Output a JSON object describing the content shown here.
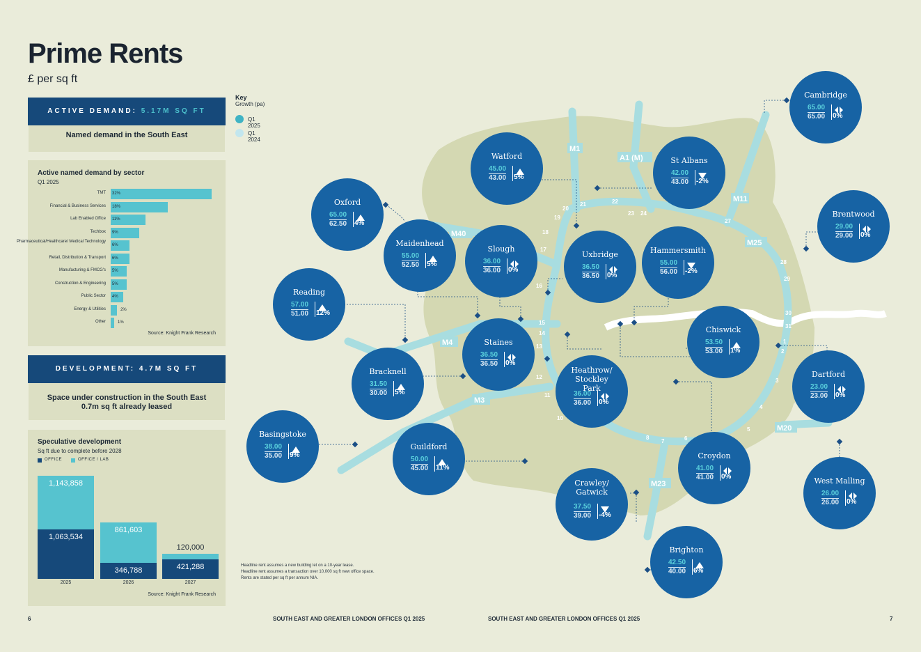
{
  "header": {
    "title": "Prime Rents",
    "subtitle": "£ per sq ft"
  },
  "active_demand": {
    "banner_label": "ACTIVE DEMAND:",
    "banner_value": "5.17M SQ FT",
    "caption": "Named demand in the South East"
  },
  "sector_chart": {
    "title": "Active named demand by sector",
    "period": "Q1 2025",
    "source": "Source: Knight Frank Research",
    "chart_data": {
      "type": "bar",
      "orientation": "horizontal",
      "title": "Active named demand by sector",
      "unit": "%",
      "categories": [
        "TMT",
        "Financial & Business Services",
        "Lab Enabled Office",
        "Techbox",
        "Pharmaceutical/Healthcare/ Medical Technology",
        "Retail, Distribution & Transport",
        "Manufacturing & FMCG's",
        "Construction & Engineering",
        "Public Sector",
        "Energy & Utilities",
        "Other"
      ],
      "values": [
        32,
        18,
        11,
        9,
        6,
        6,
        5,
        5,
        4,
        2,
        1
      ],
      "labels": [
        "32%",
        "18%",
        "11%",
        "9%",
        "6%",
        "6%",
        "5%",
        "5%",
        "4%",
        "2%",
        "1%"
      ]
    }
  },
  "development": {
    "banner_label": "DEVELOPMENT: 4.7M SQ FT",
    "caption_line1": "Space under construction in the South East",
    "caption_line2": "0.7m sq ft already leased"
  },
  "spec_chart": {
    "title": "Speculative development",
    "subtitle": "Sq ft due to complete before 2028",
    "legend_office": "OFFICE",
    "legend_lab": "OFFICE / LAB",
    "source": "Source: Knight Frank Research",
    "colors": {
      "office": "#16497a",
      "lab": "#56c3cf"
    },
    "chart_data": {
      "type": "bar",
      "stacked": true,
      "categories": [
        "2025",
        "2026",
        "2027"
      ],
      "series": [
        {
          "name": "OFFICE",
          "values": [
            1063534,
            346788,
            421288
          ],
          "labels": [
            "1,063,534",
            "346,788",
            "421,288"
          ]
        },
        {
          "name": "OFFICE / LAB",
          "values": [
            1143858,
            861603,
            120000
          ],
          "labels": [
            "1,143,858",
            "861,603",
            "120,000"
          ]
        }
      ]
    }
  },
  "key": {
    "title": "Key",
    "subtitle": "Growth (pa)",
    "q1_2025": "Q1 2025",
    "q1_2024": "Q1 2024"
  },
  "roads": [
    "M1",
    "A1 (M)",
    "M11",
    "M25",
    "M40",
    "M4",
    "M3",
    "M23",
    "M20"
  ],
  "junctions": [
    "2",
    "3",
    "4",
    "5",
    "6",
    "7",
    "8",
    "10",
    "11",
    "12",
    "13",
    "14",
    "15",
    "16",
    "17",
    "18",
    "19",
    "20",
    "21",
    "22",
    "23",
    "24",
    "27",
    "28",
    "29",
    "30",
    "31",
    "1"
  ],
  "locations": [
    {
      "name": "Cambridge",
      "q1_2025": "65.00",
      "q1_2024": "65.00",
      "trend": "flat",
      "growth": "0%"
    },
    {
      "name": "Oxford",
      "q1_2025": "65.00",
      "q1_2024": "62.50",
      "trend": "up",
      "growth": "4%"
    },
    {
      "name": "Watford",
      "q1_2025": "45.00",
      "q1_2024": "43.00",
      "trend": "up",
      "growth": "5%"
    },
    {
      "name": "St Albans",
      "q1_2025": "42.00",
      "q1_2024": "43.00",
      "trend": "down",
      "growth": "-2%"
    },
    {
      "name": "Brentwood",
      "q1_2025": "29.00",
      "q1_2024": "29.00",
      "trend": "flat",
      "growth": "0%"
    },
    {
      "name": "Maidenhead",
      "q1_2025": "55.00",
      "q1_2024": "52.50",
      "trend": "up",
      "growth": "5%"
    },
    {
      "name": "Slough",
      "q1_2025": "36.00",
      "q1_2024": "36.00",
      "trend": "flat",
      "growth": "0%"
    },
    {
      "name": "Uxbridge",
      "q1_2025": "36.50",
      "q1_2024": "36.50",
      "trend": "flat",
      "growth": "0%"
    },
    {
      "name": "Hammersmith",
      "q1_2025": "55.00",
      "q1_2024": "56.00",
      "trend": "down",
      "growth": "-2%"
    },
    {
      "name": "Reading",
      "q1_2025": "57.00",
      "q1_2024": "51.00",
      "trend": "up",
      "growth": "12%"
    },
    {
      "name": "Chiswick",
      "q1_2025": "53.50",
      "q1_2024": "53.00",
      "trend": "up",
      "growth": "1%"
    },
    {
      "name": "Staines",
      "q1_2025": "36.50",
      "q1_2024": "36.50",
      "trend": "flat",
      "growth": "0%"
    },
    {
      "name": "Bracknell",
      "q1_2025": "31.50",
      "q1_2024": "30.00",
      "trend": "up",
      "growth": "5%"
    },
    {
      "name": "Heathrow/ Stockley Park",
      "q1_2025": "36.00",
      "q1_2024": "36.00",
      "trend": "flat",
      "growth": "0%"
    },
    {
      "name": "Dartford",
      "q1_2025": "23.00",
      "q1_2024": "23.00",
      "trend": "flat",
      "growth": "0%"
    },
    {
      "name": "Basingstoke",
      "q1_2025": "38.00",
      "q1_2024": "35.00",
      "trend": "up",
      "growth": "9%"
    },
    {
      "name": "Guildford",
      "q1_2025": "50.00",
      "q1_2024": "45.00",
      "trend": "up",
      "growth": "11%"
    },
    {
      "name": "Croydon",
      "q1_2025": "41.00",
      "q1_2024": "41.00",
      "trend": "flat",
      "growth": "0%"
    },
    {
      "name": "West Malling",
      "q1_2025": "26.00",
      "q1_2024": "26.00",
      "trend": "flat",
      "growth": "0%"
    },
    {
      "name": "Crawley/ Gatwick",
      "q1_2025": "37.50",
      "q1_2024": "39.00",
      "trend": "down",
      "growth": "-4%"
    },
    {
      "name": "Brighton",
      "q1_2025": "42.50",
      "q1_2024": "40.00",
      "trend": "up",
      "growth": "6%"
    }
  ],
  "notes": [
    "Headline rent assumes a new building let on a 10-year lease.",
    "Headline rent assumes a transaction over 10,000 sq ft new office space.",
    "Rents are stated per sq ft per annum NIA."
  ],
  "footer": {
    "left_page": "6",
    "left_title": "SOUTH EAST AND GREATER LONDON OFFICES Q1 2025",
    "right_title": "SOUTH EAST AND GREATER LONDON OFFICES Q1 2025",
    "right_page": "7"
  }
}
